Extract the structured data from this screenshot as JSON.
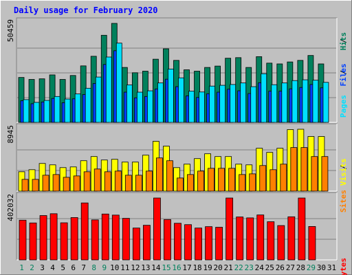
{
  "title": "Daily usage for February 2020",
  "colors": {
    "background": "#c0c0c0",
    "title": "#0000ff",
    "hits": "#00805c",
    "files": "#0040ff",
    "pages": "#00e0ff",
    "visits": "#ffff00",
    "sites": "#ff8000",
    "kbytes": "#ff0000",
    "weekend_day": "#00805c",
    "weekday": "#000000"
  },
  "chart_data": [
    {
      "type": "bar",
      "name": "hits-files-pages",
      "max_label": "50459",
      "ylim": [
        0,
        50459
      ],
      "legend": [
        "Pages",
        "Files",
        "Hits"
      ],
      "categories": [
        "1",
        "2",
        "3",
        "4",
        "5",
        "6",
        "7",
        "8",
        "9",
        "10",
        "11",
        "12",
        "13",
        "14",
        "15",
        "16",
        "17",
        "18",
        "19",
        "20",
        "21",
        "22",
        "23",
        "24",
        "25",
        "26",
        "27",
        "28",
        "29",
        "30",
        "31"
      ],
      "series": [
        {
          "name": "Hits",
          "values": [
            22900,
            21900,
            22200,
            24200,
            21900,
            23900,
            28800,
            33700,
            44400,
            50459,
            28000,
            25300,
            26100,
            32200,
            37500,
            31600,
            26800,
            26100,
            28000,
            28700,
            32700,
            33000,
            28000,
            33500,
            30200,
            29800,
            30800,
            31600,
            34100,
            29800,
            0
          ]
        },
        {
          "name": "Files",
          "values": [
            11000,
            9500,
            10400,
            12200,
            10000,
            12000,
            14200,
            19800,
            29500,
            36500,
            15400,
            12500,
            13200,
            17000,
            22000,
            18200,
            13500,
            12700,
            14600,
            15400,
            16900,
            16100,
            14700,
            20200,
            15900,
            15900,
            17100,
            17800,
            19300,
            17600,
            0
          ]
        },
        {
          "name": "Pages",
          "values": [
            11600,
            10200,
            11200,
            13200,
            11900,
            14500,
            17400,
            23100,
            33300,
            40400,
            19100,
            15400,
            16100,
            20100,
            27200,
            22700,
            15900,
            15500,
            18500,
            18900,
            19300,
            20100,
            18200,
            24800,
            19200,
            20100,
            21300,
            21700,
            21500,
            20400,
            0
          ]
        }
      ]
    },
    {
      "type": "bar",
      "name": "visits-sites",
      "max_label": "8945",
      "ylim": [
        0,
        8945
      ],
      "legend": [
        "Sites",
        "Visits"
      ],
      "categories": [
        "1",
        "2",
        "3",
        "4",
        "5",
        "6",
        "7",
        "8",
        "9",
        "10",
        "11",
        "12",
        "13",
        "14",
        "15",
        "16",
        "17",
        "18",
        "19",
        "20",
        "21",
        "22",
        "23",
        "24",
        "25",
        "26",
        "27",
        "28",
        "29",
        "30",
        "31"
      ],
      "series": [
        {
          "name": "Visits",
          "values": [
            2800,
            3100,
            4000,
            3800,
            3400,
            3500,
            4400,
            5000,
            4500,
            4600,
            4200,
            4200,
            5200,
            7200,
            6500,
            3400,
            3900,
            4700,
            5400,
            5000,
            5000,
            3900,
            3800,
            6200,
            5600,
            6200,
            8900,
            8945,
            7900,
            7900,
            0
          ]
        },
        {
          "name": "Sites",
          "values": [
            1700,
            1700,
            2300,
            2400,
            2000,
            2200,
            2800,
            3200,
            2800,
            2900,
            2300,
            2300,
            2900,
            4800,
            4400,
            1900,
            2400,
            2900,
            3300,
            3300,
            3300,
            2400,
            2500,
            3700,
            3100,
            3900,
            6300,
            6300,
            5000,
            5000,
            0
          ]
        }
      ]
    },
    {
      "type": "bar",
      "name": "kbytes",
      "max_label": "402032",
      "ylim": [
        0,
        402032
      ],
      "legend": [
        "KBytes"
      ],
      "categories": [
        "1",
        "2",
        "3",
        "4",
        "5",
        "6",
        "7",
        "8",
        "9",
        "10",
        "11",
        "12",
        "13",
        "14",
        "15",
        "16",
        "17",
        "18",
        "19",
        "20",
        "21",
        "22",
        "23",
        "24",
        "25",
        "26",
        "27",
        "28",
        "29",
        "30",
        "31"
      ],
      "series": [
        {
          "name": "KBytes",
          "values": [
            258000,
            240000,
            288000,
            300000,
            241000,
            275000,
            370000,
            260000,
            298000,
            291000,
            270000,
            207000,
            225000,
            402032,
            262000,
            238000,
            229000,
            207000,
            216000,
            212000,
            402032,
            279000,
            273000,
            292000,
            248000,
            223000,
            280000,
            402032,
            217000,
            0,
            0
          ]
        }
      ]
    }
  ]
}
